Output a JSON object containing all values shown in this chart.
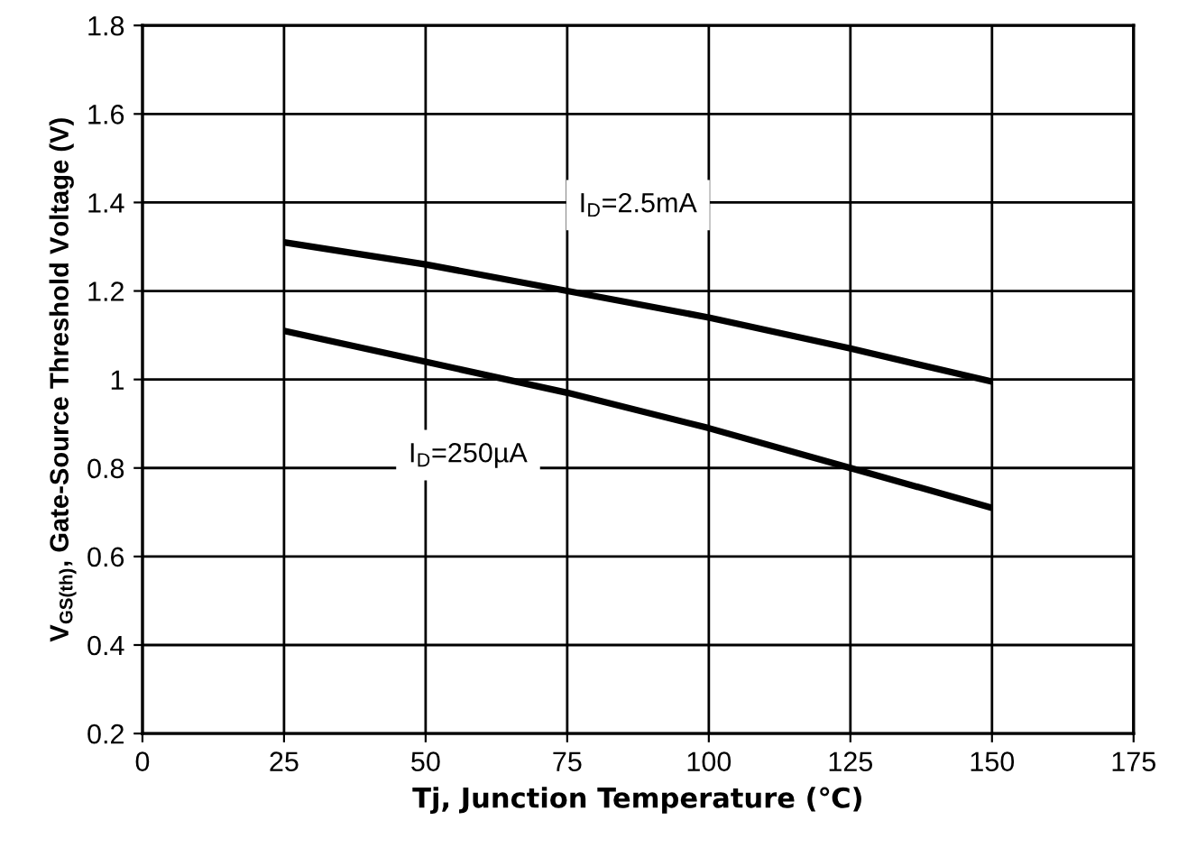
{
  "chart_data": {
    "type": "line",
    "xlabel": "Tj, Junction Temperature (℃)",
    "ylabel": "V$_{GS(th)}$, Gate-Source Threshold Voltage (V)",
    "x": [
      25,
      50,
      75,
      100,
      125,
      150
    ],
    "series": [
      {
        "name": "I$_{D}$=2.5mA",
        "color": "#000000",
        "values": [
          1.31,
          1.26,
          1.2,
          1.14,
          1.07,
          0.995
        ]
      },
      {
        "name": "I$_{D}$=250µA",
        "color": "#000000",
        "values": [
          1.11,
          1.04,
          0.97,
          0.89,
          0.8,
          0.71
        ]
      }
    ],
    "xlim": [
      0,
      175
    ],
    "xticks": [
      0,
      25,
      50,
      75,
      100,
      125,
      150,
      175
    ],
    "ylim": [
      0.2,
      1.8
    ],
    "yticks": [
      {
        "value": 0.2,
        "label": "0.2"
      },
      {
        "value": 0.4,
        "label": "0.4"
      },
      {
        "value": 0.6,
        "label": "0.6"
      },
      {
        "value": 0.8,
        "label": "0.8"
      },
      {
        "value": 1,
        "label": "1"
      },
      {
        "value": 1.2,
        "label": "1.2"
      },
      {
        "value": 1.4,
        "label": "1.4"
      },
      {
        "value": 1.6,
        "label": "1.6"
      },
      {
        "value": 1.8,
        "label": "1.8"
      }
    ],
    "grid": true,
    "marker": "none",
    "line_style": "solid",
    "legend": false
  }
}
